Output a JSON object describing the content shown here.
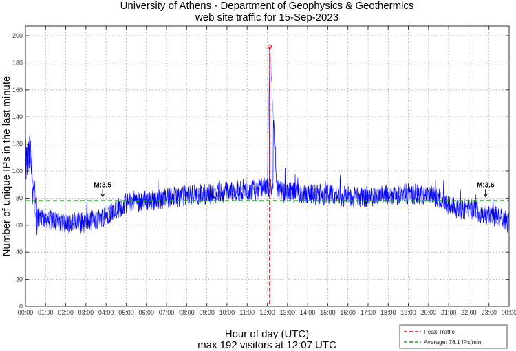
{
  "chart_data": {
    "type": "line",
    "title": "University of Athens - Department of Geophysics & Geothermics",
    "subtitle": "web site traffic for 15-Sep-2023",
    "xlabel": "Hour of day (UTC)",
    "xlabel2": "max 192 visitors at 12:07 UTC",
    "ylabel": "Number of unique IPs in the last minute",
    "xlim": [
      0,
      24
    ],
    "ylim": [
      0,
      205
    ],
    "grid": true,
    "x_tick_labels": [
      "00:00",
      "01:00",
      "02:00",
      "03:00",
      "04:00",
      "05:00",
      "06:00",
      "07:00",
      "08:00",
      "09:00",
      "10:00",
      "11:00",
      "12:00",
      "13:00",
      "14:00",
      "15:00",
      "16:00",
      "17:00",
      "18:00",
      "19:00",
      "20:00",
      "21:00",
      "22:00",
      "23:00",
      "00:00"
    ],
    "y_ticks": [
      0,
      20,
      40,
      60,
      80,
      100,
      120,
      140,
      160,
      180,
      200
    ],
    "series": [
      {
        "name": "Unique IPs per minute",
        "color": "#0000ff",
        "x_hours": [
          0,
          0.25,
          0.5,
          1,
          2,
          3,
          3.5,
          4,
          4.5,
          5,
          5.5,
          6,
          7,
          8,
          9,
          10,
          11,
          11.5,
          12,
          12.12,
          12.5,
          13,
          14,
          15,
          16,
          17,
          18,
          19,
          20,
          20.5,
          21,
          21.5,
          22,
          22.5,
          23,
          23.5,
          24
        ],
        "values": [
          105,
          110,
          68,
          65,
          62,
          62,
          64,
          68,
          72,
          76,
          78,
          78,
          80,
          82,
          83,
          85,
          85,
          86,
          88,
          192,
          86,
          84,
          83,
          82,
          81,
          81,
          82,
          83,
          82,
          80,
          76,
          72,
          72,
          70,
          67,
          66,
          62
        ]
      }
    ],
    "peak": {
      "label": "Peak Traffic",
      "time": "12:07",
      "hour": 12.117,
      "value": 192,
      "color": "#ff0000"
    },
    "average": {
      "label": "Average: 78.1 IPs/min",
      "value": 78.1,
      "color": "#00aa00"
    },
    "annotations": [
      {
        "text": "M:3.5",
        "hour": 3.83,
        "y": 80
      },
      {
        "text": "M:3.6",
        "hour": 22.83,
        "y": 80
      }
    ],
    "legend": {
      "placement": "bottom-right",
      "entries": [
        "Peak Traffic",
        "Average: 78.1 IPs/min"
      ]
    }
  }
}
